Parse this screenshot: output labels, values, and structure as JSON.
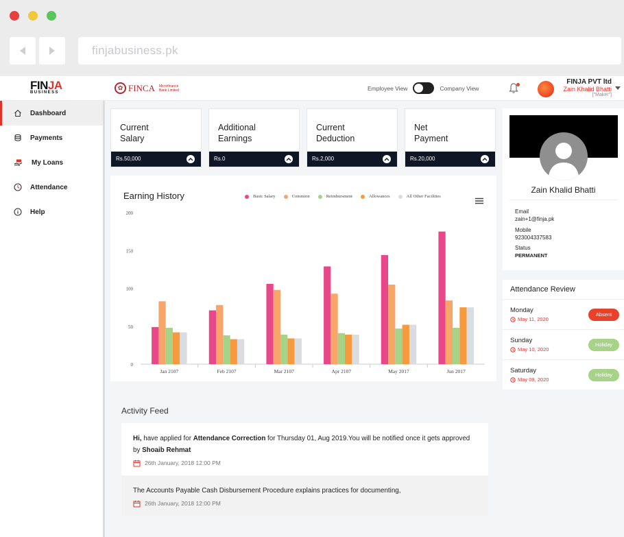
{
  "browser": {
    "url": "finjabusiness.pk"
  },
  "brand": {
    "logo_main": "FIN",
    "logo_accent": "JA",
    "logo_sub": "BUSINESS",
    "partner": "FINCA",
    "partner_sub": "Microfinance Bank Limited"
  },
  "header": {
    "toggle_left": "Employee View",
    "toggle_right": "Company View",
    "company": "FINJA PVT ltd",
    "user": "Zain Khalid Bhatti",
    "role": "[\"Maker\"]"
  },
  "sidebar": {
    "items": [
      {
        "label": "Dashboard",
        "icon": "home-icon"
      },
      {
        "label": "Payments",
        "icon": "coins-icon"
      },
      {
        "label": "My Loans",
        "icon": "loan-hand-icon"
      },
      {
        "label": "Attendance",
        "icon": "clock-icon"
      },
      {
        "label": "Help",
        "icon": "info-icon"
      }
    ]
  },
  "cards": [
    {
      "line1": "Current",
      "line2": "Salary",
      "value": "Rs.50,000"
    },
    {
      "line1": "Additional",
      "line2": "Earnings",
      "value": "Rs.0"
    },
    {
      "line1": "Current",
      "line2": "Deduction",
      "value": "Rs.2,000"
    },
    {
      "line1": "Net",
      "line2": "Payment",
      "value": "Rs.20,000"
    }
  ],
  "chart_data": {
    "type": "bar",
    "title": "Earning History",
    "categories": [
      "Jan 2107",
      "Feb 2107",
      "Mar 2107",
      "Apr 2107",
      "May 2017",
      "Jun 2017"
    ],
    "ylim": [
      0,
      200
    ],
    "yticks": [
      0,
      50,
      100,
      150,
      200
    ],
    "legend_position": "top-right",
    "grid": false,
    "series": [
      {
        "name": "Basic Salary",
        "color": "#e8488a",
        "values": [
          49,
          71,
          106,
          129,
          144,
          175
        ]
      },
      {
        "name": "Commion",
        "color": "#f8a56a",
        "values": [
          83,
          78,
          98,
          93,
          105,
          84
        ]
      },
      {
        "name": "Reimbursment",
        "color": "#a6d388",
        "values": [
          48,
          38,
          39,
          41,
          47,
          48
        ]
      },
      {
        "name": "Allowances",
        "color": "#f79a3e",
        "values": [
          42,
          33,
          34,
          39,
          52,
          75
        ]
      },
      {
        "name": "All Other Facilities",
        "color": "#d9dde1",
        "values": [
          42,
          33,
          34,
          39,
          52,
          75
        ]
      }
    ]
  },
  "profile": {
    "name": "Zain Khalid Bhatti",
    "email_label": "Email",
    "email": "zain+1@finja.pk",
    "mobile_label": "Mobile",
    "mobile": "923004337583",
    "status_label": "Status",
    "status": "PERMANENT"
  },
  "attendance": {
    "title": "Attendance Review",
    "rows": [
      {
        "day": "Monday",
        "date": "May 11, 2020",
        "status": "Absent",
        "color": "#e8412c"
      },
      {
        "day": "Sunday",
        "date": "May 10, 2020",
        "status": "Holiday",
        "color": "#a6d388"
      },
      {
        "day": "Saturday",
        "date": "May 09, 2020",
        "status": "Holiday",
        "color": "#a6d388"
      }
    ]
  },
  "feed": {
    "title": "Activity Feed",
    "items": [
      {
        "p1": "Hi,",
        "p2": " have applied for ",
        "p3": "Attendance Correction",
        "p4": " for Thursday 01, Aug 2019.You will be notified once it gets approved by ",
        "p5": "Shoaib Rehmat",
        "time": "26th January, 2018 12:00 PM"
      },
      {
        "text": "The Accounts Payable Cash Disbursement Procedure explains practices for documenting,",
        "time": "26th January, 2018 12:00 PM"
      }
    ]
  }
}
